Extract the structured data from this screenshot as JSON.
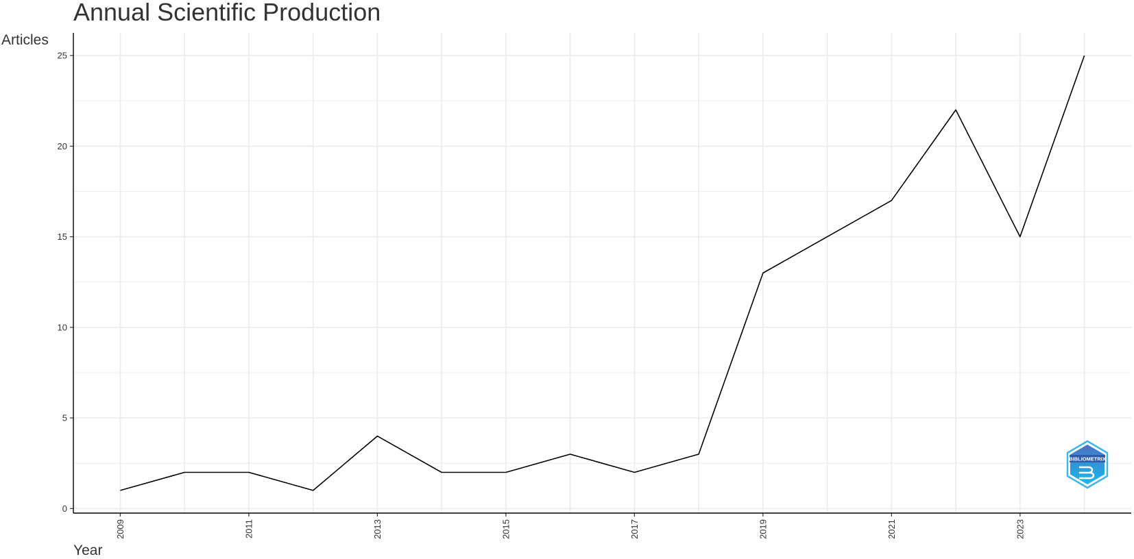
{
  "chart_data": {
    "type": "line",
    "title": "Annual Scientific Production",
    "xlabel": "Year",
    "ylabel": "Articles",
    "x": [
      2009,
      2010,
      2011,
      2012,
      2013,
      2014,
      2015,
      2016,
      2017,
      2018,
      2019,
      2020,
      2021,
      2022,
      2023,
      2024
    ],
    "values": [
      1,
      2,
      2,
      1,
      4,
      2,
      2,
      3,
      2,
      3,
      13,
      15,
      17,
      22,
      15,
      25
    ],
    "xticks": [
      "2009",
      "2011",
      "2013",
      "2015",
      "2017",
      "2019",
      "2021",
      "2023"
    ],
    "yticks": [
      "0",
      "5",
      "10",
      "15",
      "20",
      "25"
    ],
    "xlim": [
      2008.27,
      2024.73
    ],
    "ylim": [
      -0.25,
      26.25
    ],
    "grid": true,
    "line_color": "#000000",
    "grid_color": "#ebebeb"
  },
  "watermark": {
    "text": "BIBLIOMETRIX",
    "color_top": "#4a72c4",
    "color_bottom": "#1ab8ea"
  }
}
